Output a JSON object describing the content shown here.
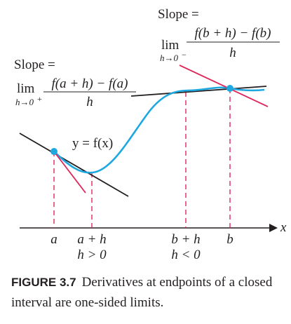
{
  "labels": {
    "left_slope": "Slope =",
    "left_lim": "lim",
    "left_lim_sub": "h→0",
    "left_lim_sup": "+",
    "left_num": "f(a + h) − f(a)",
    "left_den": "h",
    "right_slope": "Slope =",
    "right_lim": "lim",
    "right_lim_sub": "h→0",
    "right_lim_sup": "−",
    "right_num": "f(b + h) − f(b)",
    "right_den": "h",
    "curve": "y = f(x)",
    "x_axis": "x"
  },
  "ticks": [
    {
      "line1": "a",
      "line2": ""
    },
    {
      "line1": "a + h",
      "line2": "h > 0"
    },
    {
      "line1": "b + h",
      "line2": "h < 0"
    },
    {
      "line1": "b",
      "line2": ""
    }
  ],
  "caption": {
    "number": "FIGURE 3.7",
    "text": "Derivatives at endpoints of a closed interval are one-sided limits."
  },
  "colors": {
    "curve": "#1ea8e0",
    "secant": "#e0265a",
    "tangent": "#231f20",
    "guide": "#e0265a"
  }
}
